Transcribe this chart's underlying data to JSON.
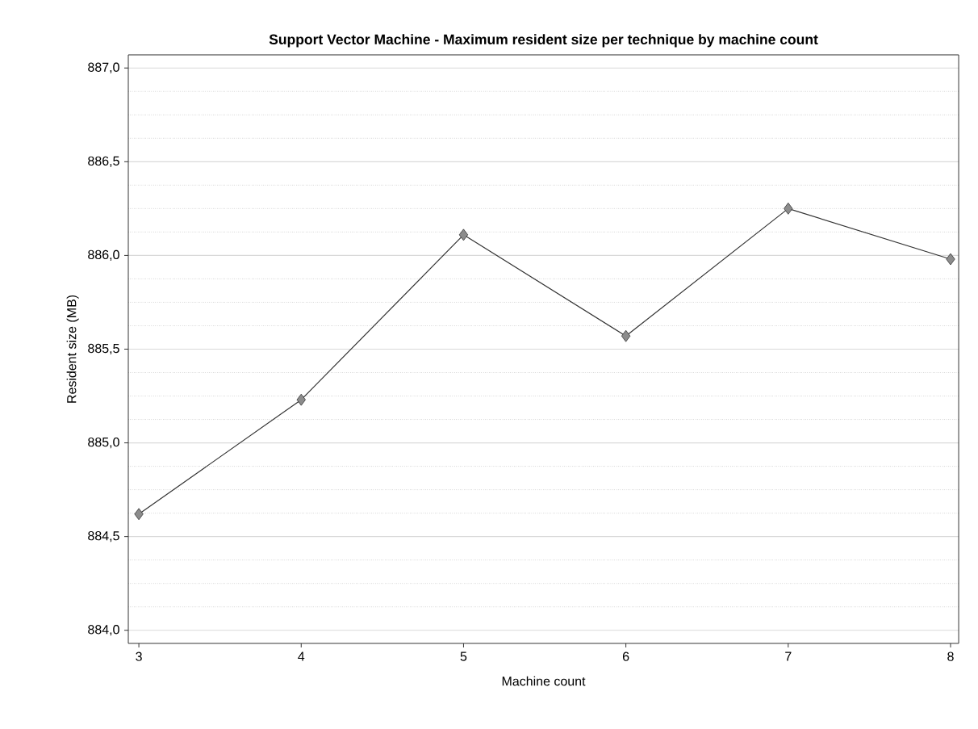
{
  "chart_data": {
    "type": "line",
    "title": "Support Vector Machine - Maximum resident size per technique by machine count",
    "xlabel": "Machine count",
    "ylabel": "Resident size (MB)",
    "x": [
      3,
      4,
      5,
      6,
      7,
      8
    ],
    "series": [
      {
        "color": "#333333",
        "values": [
          884.62,
          885.23,
          886.11,
          885.57,
          886.25,
          885.98
        ]
      }
    ],
    "xlim": [
      2.935,
      8.05
    ],
    "ylim": [
      883.93,
      887.07
    ],
    "xticks": [
      3,
      4,
      5,
      6,
      7,
      8
    ],
    "yticks": [
      {
        "value": 884,
        "label": "884,0"
      },
      {
        "value": 884.5,
        "label": "884,5"
      },
      {
        "value": 885,
        "label": "885,0"
      },
      {
        "value": 885.5,
        "label": "885,5"
      },
      {
        "value": 886,
        "label": "886,0"
      },
      {
        "value": 886.5,
        "label": "886,5"
      },
      {
        "value": 887,
        "label": "887,0"
      }
    ],
    "grid": "y",
    "marker": "diamond",
    "line_style": "solid"
  }
}
